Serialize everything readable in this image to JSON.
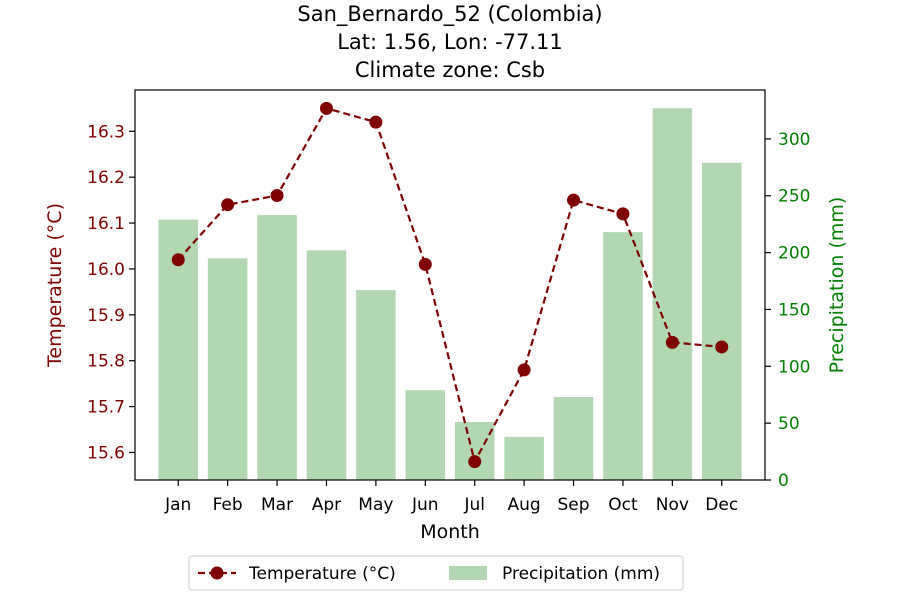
{
  "chart_data": {
    "type": "bar+line",
    "title": [
      "San_Bernardo_52 (Colombia)",
      "Lat: 1.56, Lon: -77.11",
      "Climate zone: Csb"
    ],
    "xlabel": "Month",
    "ylabel_left": "Temperature (°C)",
    "ylabel_right": "Precipitation (mm)",
    "categories": [
      "Jan",
      "Feb",
      "Mar",
      "Apr",
      "May",
      "Jun",
      "Jul",
      "Aug",
      "Sep",
      "Oct",
      "Nov",
      "Dec"
    ],
    "series": [
      {
        "name": "Temperature (°C)",
        "type": "line",
        "axis": "left",
        "color": "#800000",
        "values": [
          16.02,
          16.14,
          16.16,
          16.35,
          16.32,
          16.01,
          15.58,
          15.78,
          16.15,
          16.12,
          15.84,
          15.83
        ]
      },
      {
        "name": "Precipitation (mm)",
        "type": "bar",
        "axis": "right",
        "color": "#b2d8b2",
        "values": [
          229,
          195,
          233,
          202,
          167,
          79,
          51,
          38,
          73,
          218,
          327,
          279
        ]
      }
    ],
    "ylim_left": [
      15.54,
      16.39
    ],
    "yticks_left": [
      "15.6",
      "15.7",
      "15.8",
      "15.9",
      "16.0",
      "16.1",
      "16.2",
      "16.3"
    ],
    "ylim_right": [
      0,
      343
    ],
    "yticks_right": [
      "0",
      "50",
      "100",
      "150",
      "200",
      "250",
      "300"
    ],
    "grid": false,
    "legend_position": "bottom-center",
    "left_axis_color": "#800000",
    "right_axis_color": "#008000"
  }
}
